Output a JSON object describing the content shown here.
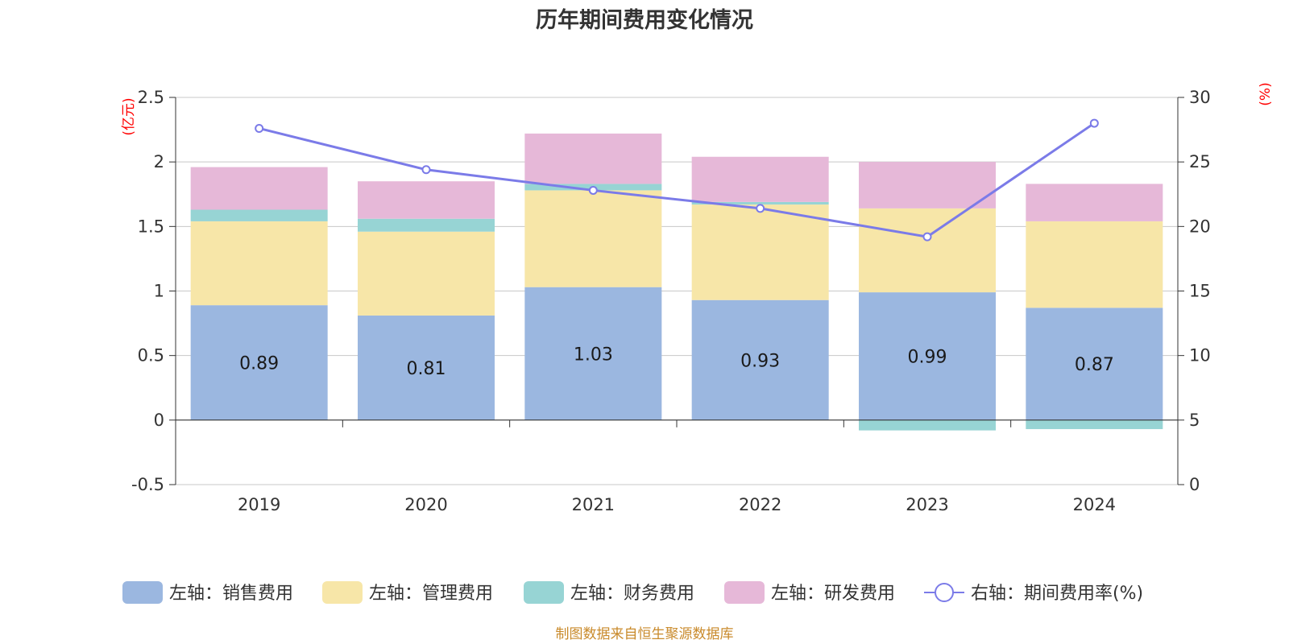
{
  "chart_data": {
    "type": "bar",
    "stacked": true,
    "title": "历年期间费用变化情况",
    "categories": [
      "2019",
      "2020",
      "2021",
      "2022",
      "2023",
      "2024"
    ],
    "left_axis": {
      "unit": "(亿元)",
      "ylim": [
        -0.5,
        2.5
      ],
      "ticks": [
        -0.5,
        0,
        0.5,
        1,
        1.5,
        2,
        2.5
      ],
      "tick_labels": [
        "-0.5",
        "0",
        "0.5",
        "1",
        "1.5",
        "2",
        "2.5"
      ]
    },
    "right_axis": {
      "unit": "(%)",
      "ylim": [
        0,
        30
      ],
      "ticks": [
        0,
        5,
        10,
        15,
        20,
        25,
        30
      ],
      "tick_labels": [
        "0",
        "5",
        "10",
        "15",
        "20",
        "25",
        "30"
      ]
    },
    "series": [
      {
        "name": "左轴：销售费用",
        "axis": "left",
        "type": "bar",
        "color": "#9bb7e0",
        "values": [
          0.89,
          0.81,
          1.03,
          0.93,
          0.99,
          0.87
        ],
        "labels": [
          "0.89",
          "0.81",
          "1.03",
          "0.93",
          "0.99",
          "0.87"
        ]
      },
      {
        "name": "左轴：管理费用",
        "axis": "left",
        "type": "bar",
        "color": "#f7e6a8",
        "values": [
          0.65,
          0.65,
          0.75,
          0.74,
          0.65,
          0.67
        ]
      },
      {
        "name": "左轴：财务费用",
        "axis": "left",
        "type": "bar",
        "color": "#97d4d4",
        "values": [
          0.09,
          0.1,
          0.05,
          0.02,
          -0.08,
          -0.07
        ]
      },
      {
        "name": "左轴：研发费用",
        "axis": "left",
        "type": "bar",
        "color": "#e6b8d8",
        "values": [
          0.33,
          0.29,
          0.39,
          0.35,
          0.36,
          0.29
        ]
      },
      {
        "name": "右轴：期间费用率(%)",
        "axis": "right",
        "type": "line",
        "color": "#7b7be8",
        "values": [
          27.6,
          24.4,
          22.8,
          21.4,
          19.2,
          28.0
        ]
      }
    ],
    "source": "制图数据来自恒生聚源数据库"
  }
}
